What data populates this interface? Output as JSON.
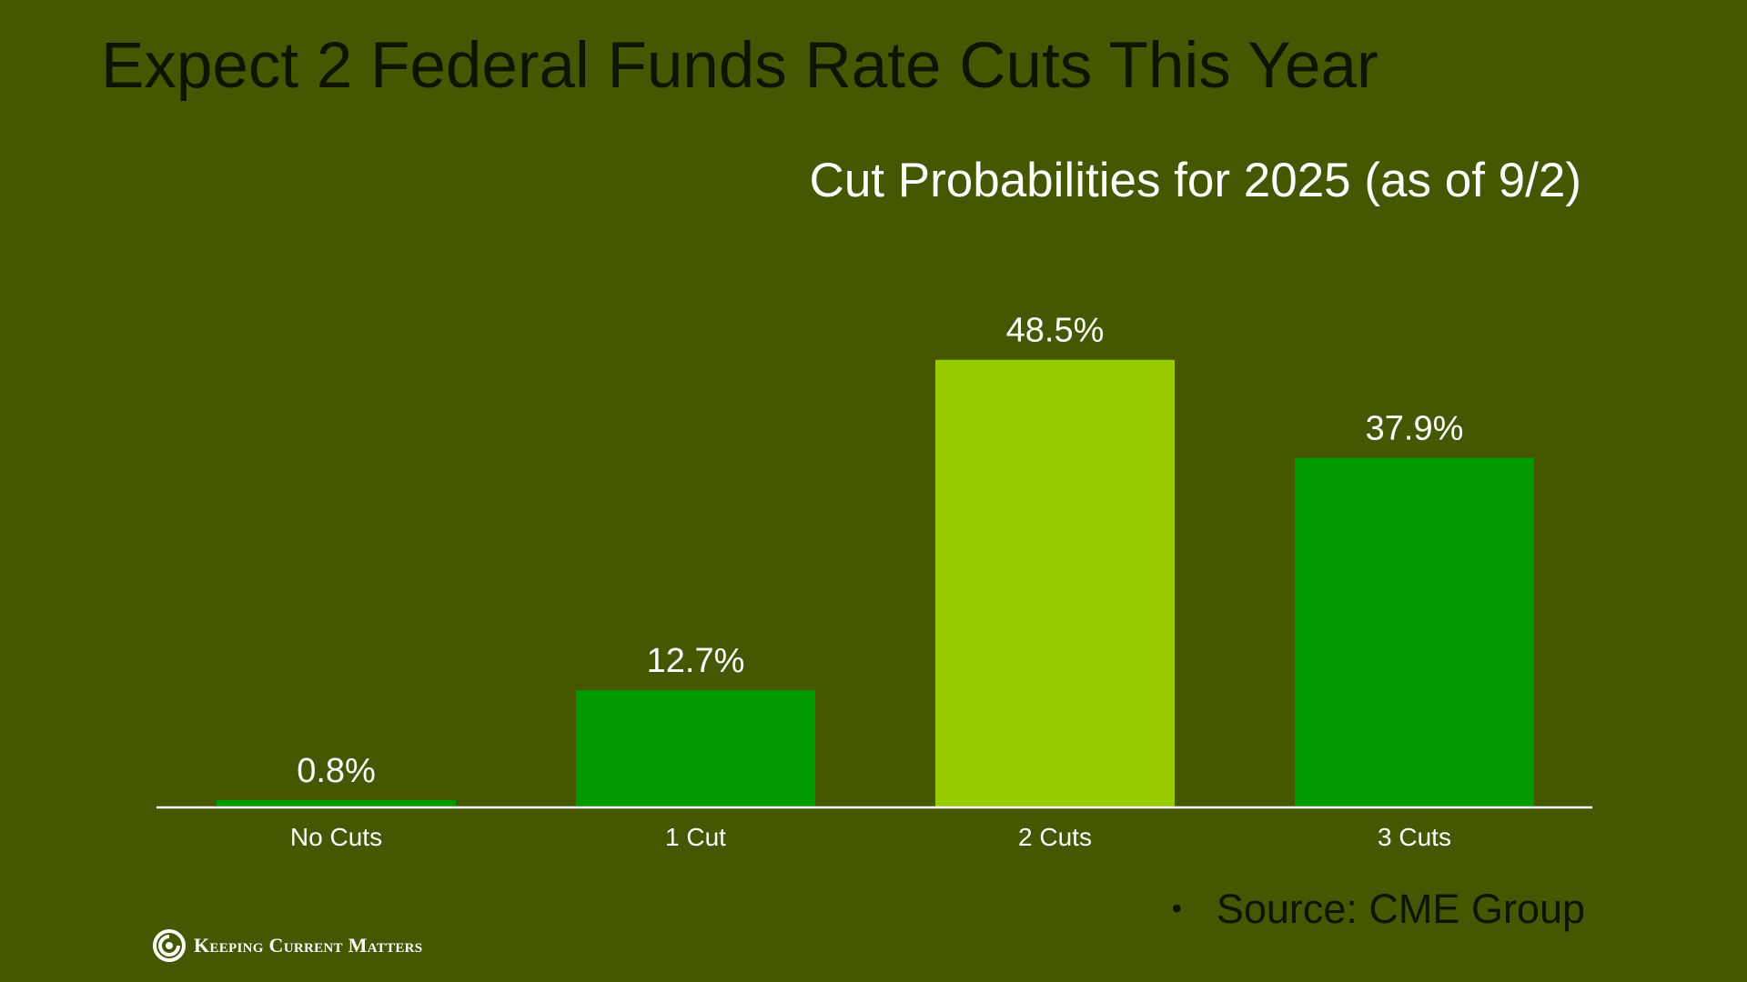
{
  "slide": {
    "title": "Expect 2 Federal Funds Rate Cuts This Year",
    "source_bullet": "•",
    "source": "Source: CME Group",
    "logo_text": "Keeping Current Matters"
  },
  "chart_data": {
    "type": "bar",
    "title": "Cut Probabilities for 2025 (as of 9/2)",
    "xlabel": "",
    "ylabel": "",
    "ylim": [
      0,
      100
    ],
    "grid": false,
    "legend": "none",
    "categories": [
      "No Cuts",
      "1 Cut",
      "2 Cuts",
      "3 Cuts"
    ],
    "values": [
      0.8,
      12.7,
      48.5,
      37.9
    ],
    "data_labels": [
      "0.8%",
      "12.7%",
      "48.5%",
      "37.9%"
    ],
    "bar_colors": [
      "#009900",
      "#009900",
      "#99cc00",
      "#009900"
    ],
    "axis_color": "#ffffff",
    "label_color": "#ffffff"
  }
}
